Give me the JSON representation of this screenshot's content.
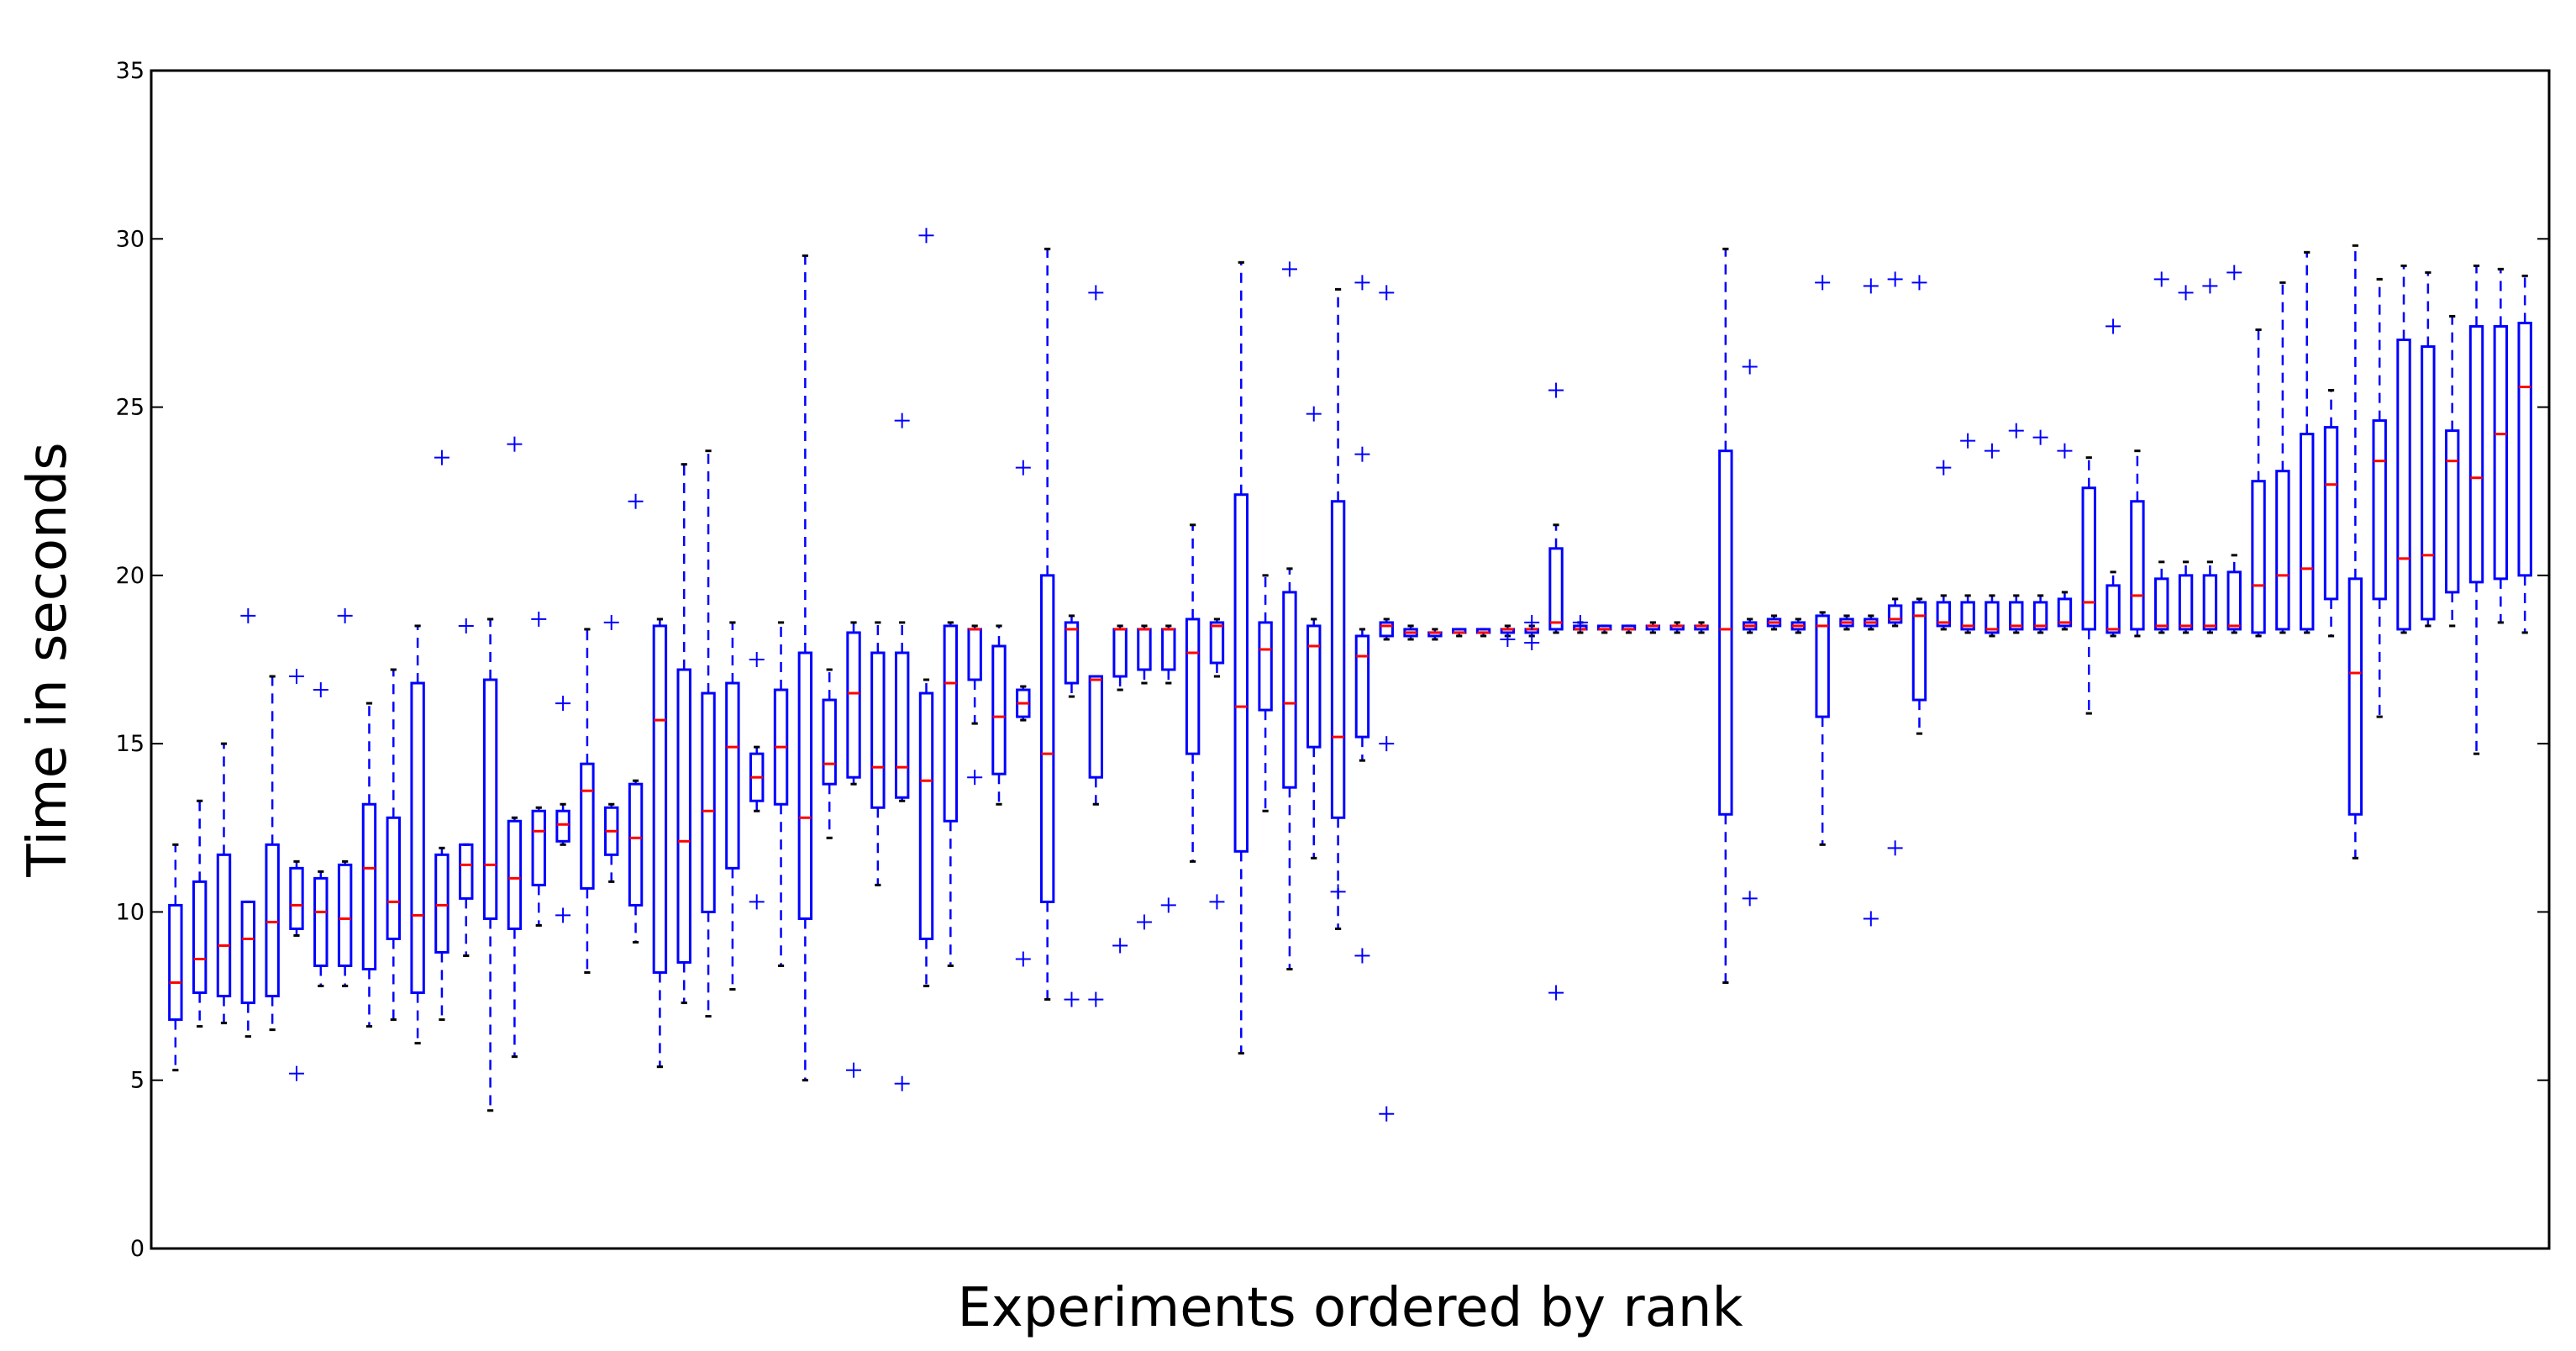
{
  "chart_data": {
    "type": "box",
    "title": "",
    "xlabel": "Experiments ordered by rank",
    "ylabel": "Time in seconds",
    "ylim": [
      0,
      35
    ],
    "yticks": [
      0,
      5,
      10,
      15,
      20,
      25,
      30,
      35
    ],
    "grid": false,
    "colors": {
      "box": "#0000ff",
      "median": "#ff0000",
      "whisker_cap": "#000000",
      "frame": "#000000"
    },
    "boxes": [
      {
        "wl": 5.3,
        "q1": 6.8,
        "med": 7.9,
        "q3": 10.2,
        "wh": 12.0,
        "fl": []
      },
      {
        "wl": 6.6,
        "q1": 7.6,
        "med": 8.6,
        "q3": 10.9,
        "wh": 13.3,
        "fl": []
      },
      {
        "wl": 6.7,
        "q1": 7.5,
        "med": 9.0,
        "q3": 11.7,
        "wh": 15.0,
        "fl": []
      },
      {
        "wl": 6.3,
        "q1": 7.3,
        "med": 9.2,
        "q3": 10.3,
        "wh": 10.3,
        "fl": [
          18.8
        ]
      },
      {
        "wl": 6.5,
        "q1": 7.5,
        "med": 9.7,
        "q3": 12.0,
        "wh": 17.0,
        "fl": []
      },
      {
        "wl": 9.3,
        "q1": 9.5,
        "med": 10.2,
        "q3": 11.3,
        "wh": 11.5,
        "fl": [
          17.0,
          5.2
        ]
      },
      {
        "wl": 7.8,
        "q1": 8.4,
        "med": 10.0,
        "q3": 11.0,
        "wh": 11.2,
        "fl": [
          16.6
        ]
      },
      {
        "wl": 7.8,
        "q1": 8.4,
        "med": 9.8,
        "q3": 11.4,
        "wh": 11.5,
        "fl": [
          18.8
        ]
      },
      {
        "wl": 6.6,
        "q1": 8.3,
        "med": 11.3,
        "q3": 13.2,
        "wh": 16.2,
        "fl": []
      },
      {
        "wl": 6.8,
        "q1": 9.2,
        "med": 10.3,
        "q3": 12.8,
        "wh": 17.2,
        "fl": []
      },
      {
        "wl": 6.1,
        "q1": 7.6,
        "med": 9.9,
        "q3": 16.8,
        "wh": 18.5,
        "fl": []
      },
      {
        "wl": 6.8,
        "q1": 8.8,
        "med": 10.2,
        "q3": 11.7,
        "wh": 11.9,
        "fl": [
          23.5
        ]
      },
      {
        "wl": 8.7,
        "q1": 10.4,
        "med": 11.4,
        "q3": 12.0,
        "wh": 12.0,
        "fl": [
          18.5
        ]
      },
      {
        "wl": 4.1,
        "q1": 9.8,
        "med": 11.4,
        "q3": 16.9,
        "wh": 18.7,
        "fl": []
      },
      {
        "wl": 5.7,
        "q1": 9.5,
        "med": 11.0,
        "q3": 12.7,
        "wh": 12.8,
        "fl": [
          23.9
        ]
      },
      {
        "wl": 9.6,
        "q1": 10.8,
        "med": 12.4,
        "q3": 13.0,
        "wh": 13.1,
        "fl": [
          18.7
        ]
      },
      {
        "wl": 12.0,
        "q1": 12.1,
        "med": 12.6,
        "q3": 13.0,
        "wh": 13.2,
        "fl": [
          16.2,
          9.9
        ]
      },
      {
        "wl": 8.2,
        "q1": 10.7,
        "med": 13.6,
        "q3": 14.4,
        "wh": 18.4,
        "fl": []
      },
      {
        "wl": 10.9,
        "q1": 11.7,
        "med": 12.4,
        "q3": 13.1,
        "wh": 13.2,
        "fl": [
          18.6
        ]
      },
      {
        "wl": 9.1,
        "q1": 10.2,
        "med": 12.2,
        "q3": 13.8,
        "wh": 13.9,
        "fl": [
          22.2
        ]
      },
      {
        "wl": 5.4,
        "q1": 8.2,
        "med": 15.7,
        "q3": 18.5,
        "wh": 18.7,
        "fl": []
      },
      {
        "wl": 7.3,
        "q1": 8.5,
        "med": 12.1,
        "q3": 17.2,
        "wh": 23.3,
        "fl": []
      },
      {
        "wl": 6.9,
        "q1": 10.0,
        "med": 13.0,
        "q3": 16.5,
        "wh": 23.7,
        "fl": []
      },
      {
        "wl": 7.7,
        "q1": 11.3,
        "med": 14.9,
        "q3": 16.8,
        "wh": 18.6,
        "fl": []
      },
      {
        "wl": 13.0,
        "q1": 13.3,
        "med": 14.0,
        "q3": 14.7,
        "wh": 14.9,
        "fl": [
          17.5,
          10.3
        ]
      },
      {
        "wl": 8.4,
        "q1": 13.2,
        "med": 14.9,
        "q3": 16.6,
        "wh": 18.6,
        "fl": []
      },
      {
        "wl": 5.0,
        "q1": 9.8,
        "med": 12.8,
        "q3": 17.7,
        "wh": 29.5,
        "fl": []
      },
      {
        "wl": 12.2,
        "q1": 13.8,
        "med": 14.4,
        "q3": 16.3,
        "wh": 17.2,
        "fl": []
      },
      {
        "wl": 13.8,
        "q1": 14.0,
        "med": 16.5,
        "q3": 18.3,
        "wh": 18.6,
        "fl": [
          5.3
        ]
      },
      {
        "wl": 10.8,
        "q1": 13.1,
        "med": 14.3,
        "q3": 17.7,
        "wh": 18.6,
        "fl": []
      },
      {
        "wl": 13.3,
        "q1": 13.4,
        "med": 14.3,
        "q3": 17.7,
        "wh": 18.6,
        "fl": [
          24.6,
          4.9
        ]
      },
      {
        "wl": 7.8,
        "q1": 9.2,
        "med": 13.9,
        "q3": 16.5,
        "wh": 16.9,
        "fl": [
          30.1
        ]
      },
      {
        "wl": 8.4,
        "q1": 12.7,
        "med": 16.8,
        "q3": 18.5,
        "wh": 18.6,
        "fl": []
      },
      {
        "wl": 15.6,
        "q1": 16.9,
        "med": 18.4,
        "q3": 18.4,
        "wh": 18.5,
        "fl": [
          14.0
        ]
      },
      {
        "wl": 13.2,
        "q1": 14.1,
        "med": 15.8,
        "q3": 17.9,
        "wh": 18.5,
        "fl": []
      },
      {
        "wl": 15.7,
        "q1": 15.8,
        "med": 16.2,
        "q3": 16.6,
        "wh": 16.7,
        "fl": [
          23.2,
          8.6
        ]
      },
      {
        "wl": 7.4,
        "q1": 10.3,
        "med": 14.7,
        "q3": 20.0,
        "wh": 29.7,
        "fl": []
      },
      {
        "wl": 16.4,
        "q1": 16.8,
        "med": 18.4,
        "q3": 18.6,
        "wh": 18.8,
        "fl": [
          7.4
        ]
      },
      {
        "wl": 13.2,
        "q1": 14.0,
        "med": 16.9,
        "q3": 17.0,
        "wh": 17.0,
        "fl": [
          28.4,
          7.4
        ]
      },
      {
        "wl": 16.6,
        "q1": 17.0,
        "med": 18.4,
        "q3": 18.4,
        "wh": 18.5,
        "fl": [
          9.0
        ]
      },
      {
        "wl": 16.8,
        "q1": 17.2,
        "med": 18.4,
        "q3": 18.4,
        "wh": 18.5,
        "fl": [
          9.7
        ]
      },
      {
        "wl": 16.8,
        "q1": 17.2,
        "med": 18.4,
        "q3": 18.4,
        "wh": 18.5,
        "fl": [
          10.2
        ]
      },
      {
        "wl": 11.5,
        "q1": 14.7,
        "med": 17.7,
        "q3": 18.7,
        "wh": 21.5,
        "fl": []
      },
      {
        "wl": 17.0,
        "q1": 17.4,
        "med": 18.5,
        "q3": 18.6,
        "wh": 18.7,
        "fl": [
          10.3
        ]
      },
      {
        "wl": 5.8,
        "q1": 11.8,
        "med": 16.1,
        "q3": 22.4,
        "wh": 29.3,
        "fl": []
      },
      {
        "wl": 13.0,
        "q1": 16.0,
        "med": 17.8,
        "q3": 18.6,
        "wh": 20.0,
        "fl": []
      },
      {
        "wl": 8.3,
        "q1": 13.7,
        "med": 16.2,
        "q3": 19.5,
        "wh": 20.2,
        "fl": [
          29.1
        ]
      },
      {
        "wl": 11.6,
        "q1": 14.9,
        "med": 17.9,
        "q3": 18.5,
        "wh": 18.7,
        "fl": [
          24.8
        ]
      },
      {
        "wl": 9.5,
        "q1": 12.8,
        "med": 15.2,
        "q3": 22.2,
        "wh": 28.5,
        "fl": [
          10.6
        ]
      },
      {
        "wl": 14.5,
        "q1": 15.2,
        "med": 17.6,
        "q3": 18.2,
        "wh": 18.4,
        "fl": [
          28.7,
          23.6,
          8.7
        ]
      },
      {
        "wl": 18.1,
        "q1": 18.2,
        "med": 18.5,
        "q3": 18.6,
        "wh": 18.7,
        "fl": [
          28.4,
          15.0,
          4.0
        ]
      },
      {
        "wl": 18.1,
        "q1": 18.2,
        "med": 18.3,
        "q3": 18.4,
        "wh": 18.5,
        "fl": []
      },
      {
        "wl": 18.1,
        "q1": 18.2,
        "med": 18.3,
        "q3": 18.3,
        "wh": 18.4,
        "fl": []
      },
      {
        "wl": 18.2,
        "q1": 18.3,
        "med": 18.3,
        "q3": 18.4,
        "wh": 18.4,
        "fl": []
      },
      {
        "wl": 18.2,
        "q1": 18.3,
        "med": 18.3,
        "q3": 18.4,
        "wh": 18.4,
        "fl": []
      },
      {
        "wl": 18.2,
        "q1": 18.3,
        "med": 18.4,
        "q3": 18.4,
        "wh": 18.5,
        "fl": [
          18.1
        ]
      },
      {
        "wl": 18.2,
        "q1": 18.3,
        "med": 18.4,
        "q3": 18.4,
        "wh": 18.5,
        "fl": [
          18.0,
          18.6
        ]
      },
      {
        "wl": 18.3,
        "q1": 18.4,
        "med": 18.6,
        "q3": 20.8,
        "wh": 21.5,
        "fl": [
          25.5,
          7.6
        ]
      },
      {
        "wl": 18.3,
        "q1": 18.4,
        "med": 18.4,
        "q3": 18.5,
        "wh": 18.6,
        "fl": [
          18.6
        ]
      },
      {
        "wl": 18.3,
        "q1": 18.4,
        "med": 18.4,
        "q3": 18.5,
        "wh": 18.5,
        "fl": []
      },
      {
        "wl": 18.3,
        "q1": 18.4,
        "med": 18.4,
        "q3": 18.5,
        "wh": 18.5,
        "fl": []
      },
      {
        "wl": 18.3,
        "q1": 18.4,
        "med": 18.5,
        "q3": 18.5,
        "wh": 18.6,
        "fl": []
      },
      {
        "wl": 18.3,
        "q1": 18.4,
        "med": 18.5,
        "q3": 18.5,
        "wh": 18.6,
        "fl": []
      },
      {
        "wl": 18.3,
        "q1": 18.4,
        "med": 18.5,
        "q3": 18.5,
        "wh": 18.6,
        "fl": []
      },
      {
        "wl": 7.9,
        "q1": 12.9,
        "med": 18.4,
        "q3": 23.7,
        "wh": 29.7,
        "fl": []
      },
      {
        "wl": 18.3,
        "q1": 18.4,
        "med": 18.5,
        "q3": 18.6,
        "wh": 18.7,
        "fl": [
          26.2,
          10.4
        ]
      },
      {
        "wl": 18.4,
        "q1": 18.5,
        "med": 18.6,
        "q3": 18.7,
        "wh": 18.8,
        "fl": []
      },
      {
        "wl": 18.3,
        "q1": 18.4,
        "med": 18.5,
        "q3": 18.6,
        "wh": 18.7,
        "fl": []
      },
      {
        "wl": 12.0,
        "q1": 15.8,
        "med": 18.5,
        "q3": 18.8,
        "wh": 18.9,
        "fl": [
          28.7
        ]
      },
      {
        "wl": 18.4,
        "q1": 18.5,
        "med": 18.6,
        "q3": 18.7,
        "wh": 18.8,
        "fl": []
      },
      {
        "wl": 18.4,
        "q1": 18.5,
        "med": 18.6,
        "q3": 18.7,
        "wh": 18.8,
        "fl": [
          28.6,
          9.8
        ]
      },
      {
        "wl": 18.5,
        "q1": 18.6,
        "med": 18.7,
        "q3": 19.1,
        "wh": 19.3,
        "fl": [
          28.8,
          11.9
        ]
      },
      {
        "wl": 15.3,
        "q1": 16.3,
        "med": 18.8,
        "q3": 19.2,
        "wh": 19.3,
        "fl": [
          28.7
        ]
      },
      {
        "wl": 18.4,
        "q1": 18.5,
        "med": 18.6,
        "q3": 19.2,
        "wh": 19.4,
        "fl": [
          23.2
        ]
      },
      {
        "wl": 18.3,
        "q1": 18.4,
        "med": 18.5,
        "q3": 19.2,
        "wh": 19.4,
        "fl": [
          24.0
        ]
      },
      {
        "wl": 18.2,
        "q1": 18.3,
        "med": 18.4,
        "q3": 19.2,
        "wh": 19.4,
        "fl": [
          23.7
        ]
      },
      {
        "wl": 18.3,
        "q1": 18.4,
        "med": 18.5,
        "q3": 19.2,
        "wh": 19.4,
        "fl": [
          24.3
        ]
      },
      {
        "wl": 18.3,
        "q1": 18.4,
        "med": 18.5,
        "q3": 19.2,
        "wh": 19.4,
        "fl": [
          24.1
        ]
      },
      {
        "wl": 18.4,
        "q1": 18.5,
        "med": 18.6,
        "q3": 19.3,
        "wh": 19.5,
        "fl": [
          23.7
        ]
      },
      {
        "wl": 15.9,
        "q1": 18.4,
        "med": 19.2,
        "q3": 22.6,
        "wh": 23.5,
        "fl": []
      },
      {
        "wl": 18.2,
        "q1": 18.3,
        "med": 18.4,
        "q3": 19.7,
        "wh": 20.1,
        "fl": [
          27.4
        ]
      },
      {
        "wl": 18.2,
        "q1": 18.4,
        "med": 19.4,
        "q3": 22.2,
        "wh": 23.7,
        "fl": []
      },
      {
        "wl": 18.3,
        "q1": 18.4,
        "med": 18.5,
        "q3": 19.9,
        "wh": 20.4,
        "fl": [
          28.8
        ]
      },
      {
        "wl": 18.3,
        "q1": 18.4,
        "med": 18.5,
        "q3": 20.0,
        "wh": 20.4,
        "fl": [
          28.4
        ]
      },
      {
        "wl": 18.3,
        "q1": 18.4,
        "med": 18.5,
        "q3": 20.0,
        "wh": 20.4,
        "fl": [
          28.6
        ]
      },
      {
        "wl": 18.3,
        "q1": 18.4,
        "med": 18.5,
        "q3": 20.1,
        "wh": 20.6,
        "fl": [
          29.0
        ]
      },
      {
        "wl": 18.2,
        "q1": 18.3,
        "med": 19.7,
        "q3": 22.8,
        "wh": 27.3,
        "fl": []
      },
      {
        "wl": 18.3,
        "q1": 18.4,
        "med": 20.0,
        "q3": 23.1,
        "wh": 28.7,
        "fl": []
      },
      {
        "wl": 18.3,
        "q1": 18.4,
        "med": 20.2,
        "q3": 24.2,
        "wh": 29.6,
        "fl": []
      },
      {
        "wl": 18.2,
        "q1": 19.3,
        "med": 22.7,
        "q3": 24.4,
        "wh": 25.5,
        "fl": []
      },
      {
        "wl": 11.6,
        "q1": 12.9,
        "med": 17.1,
        "q3": 19.9,
        "wh": 29.8,
        "fl": []
      },
      {
        "wl": 15.8,
        "q1": 19.3,
        "med": 23.4,
        "q3": 24.6,
        "wh": 28.8,
        "fl": []
      },
      {
        "wl": 18.3,
        "q1": 18.4,
        "med": 20.5,
        "q3": 27.0,
        "wh": 29.2,
        "fl": []
      },
      {
        "wl": 18.5,
        "q1": 18.7,
        "med": 20.6,
        "q3": 26.8,
        "wh": 29.0,
        "fl": []
      },
      {
        "wl": 18.5,
        "q1": 19.5,
        "med": 23.4,
        "q3": 24.3,
        "wh": 27.7,
        "fl": []
      },
      {
        "wl": 14.7,
        "q1": 19.8,
        "med": 22.9,
        "q3": 27.4,
        "wh": 29.2,
        "fl": []
      },
      {
        "wl": 18.6,
        "q1": 19.9,
        "med": 24.2,
        "q3": 27.4,
        "wh": 29.1,
        "fl": []
      },
      {
        "wl": 18.3,
        "q1": 20.0,
        "med": 25.6,
        "q3": 27.5,
        "wh": 28.9,
        "fl": []
      }
    ]
  }
}
